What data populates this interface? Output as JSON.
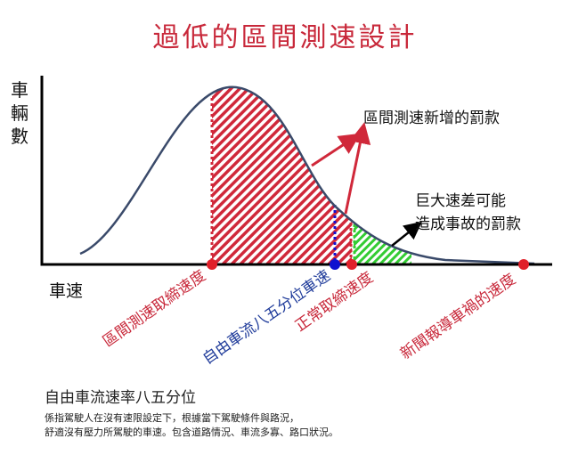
{
  "title": "過低的區間測速設計",
  "y_axis_label": [
    "車",
    "輛",
    "數"
  ],
  "x_axis_label": "車速",
  "annotations": {
    "new_fine": "區間測速新增的罰款",
    "accident_fine_line1": "巨大速差可能",
    "accident_fine_line2": "造成事故的罰款"
  },
  "markers": [
    {
      "label": "區間測速取締速度",
      "color": "#c8283a"
    },
    {
      "label": "自由車流八五分位車速",
      "color": "#1f3b9a"
    },
    {
      "label": "正常取締速度",
      "color": "#c8283a"
    },
    {
      "label": "新聞報導車禍的速度",
      "color": "#c8283a"
    }
  ],
  "note": {
    "heading": "自由車流速率八五分位",
    "line1": "係指駕駛人在沒有速限設定下，根據當下駕駛條件與路況，",
    "line2": "舒適沒有壓力所駕駛的車速。包含道路情況、車流多寡、路口狀況。"
  },
  "colors": {
    "title": "#c8283a",
    "hatch_red": "#d0283a",
    "hatch_green": "#33cc33",
    "curve": "#3a4a6a",
    "blue_point": "#1010d0"
  }
}
